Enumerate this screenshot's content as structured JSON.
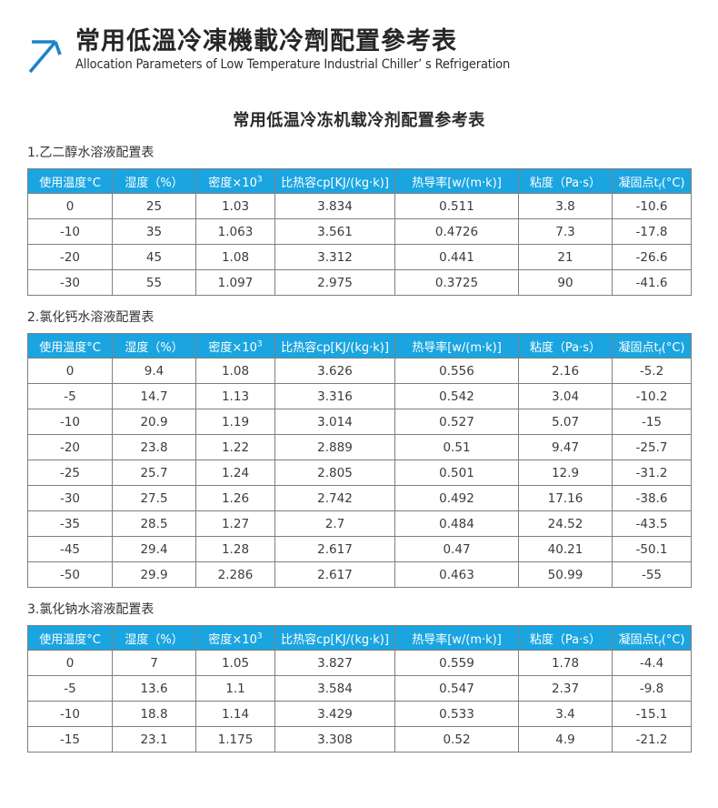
{
  "brand": {
    "arrow_icon": "arrow-up-right-icon",
    "arrow_color": "#1b82ca",
    "title_zh": "常用低溫冷凍機載冷劑配置參考表",
    "subtitle_en": "Allocation Parameters of Low Temperature Industrial Chiller’ s Refrigeration"
  },
  "page": {
    "mid_title": "常用低温冷冻机载冷剂配置参考表",
    "header_bg": "#1ba5e0",
    "header_text_color": "#ffffff",
    "border_color": "#7f7f7f"
  },
  "columns": [
    [
      {
        "t": "使用温度°C"
      }
    ],
    [
      {
        "t": "湿度（%）"
      }
    ],
    [
      {
        "t": "密度×10"
      },
      {
        "t": "3",
        "style": "sup"
      }
    ],
    [
      {
        "t": "比热容cp[KJ/(kg·k)]"
      }
    ],
    [
      {
        "t": "热导率[w/(m·k)]"
      }
    ],
    [
      {
        "t": "粘度（Pa·s）"
      }
    ],
    [
      {
        "t": "凝固点t"
      },
      {
        "t": "f",
        "style": "sub"
      },
      {
        "t": "(°C)"
      }
    ]
  ],
  "tables": [
    {
      "label": "1.乙二醇水溶液配置表",
      "rows": [
        [
          "0",
          "25",
          "1.03",
          "3.834",
          "0.511",
          "3.8",
          "-10.6"
        ],
        [
          "-10",
          "35",
          "1.063",
          "3.561",
          "0.4726",
          "7.3",
          "-17.8"
        ],
        [
          "-20",
          "45",
          "1.08",
          "3.312",
          "0.441",
          "21",
          "-26.6"
        ],
        [
          "-30",
          "55",
          "1.097",
          "2.975",
          "0.3725",
          "90",
          "-41.6"
        ]
      ]
    },
    {
      "label": "2.氯化钙水溶液配置表",
      "rows": [
        [
          "0",
          "9.4",
          "1.08",
          "3.626",
          "0.556",
          "2.16",
          "-5.2"
        ],
        [
          "-5",
          "14.7",
          "1.13",
          "3.316",
          "0.542",
          "3.04",
          "-10.2"
        ],
        [
          "-10",
          "20.9",
          "1.19",
          "3.014",
          "0.527",
          "5.07",
          "-15"
        ],
        [
          "-20",
          "23.8",
          "1.22",
          "2.889",
          "0.51",
          "9.47",
          "-25.7"
        ],
        [
          "-25",
          "25.7",
          "1.24",
          "2.805",
          "0.501",
          "12.9",
          "-31.2"
        ],
        [
          "-30",
          "27.5",
          "1.26",
          "2.742",
          "0.492",
          "17.16",
          "-38.6"
        ],
        [
          "-35",
          "28.5",
          "1.27",
          "2.7",
          "0.484",
          "24.52",
          "-43.5"
        ],
        [
          "-45",
          "29.4",
          "1.28",
          "2.617",
          "0.47",
          "40.21",
          "-50.1"
        ],
        [
          "-50",
          "29.9",
          "2.286",
          "2.617",
          "0.463",
          "50.99",
          "-55"
        ]
      ]
    },
    {
      "label": "3.氯化钠水溶液配置表",
      "rows": [
        [
          "0",
          "7",
          "1.05",
          "3.827",
          "0.559",
          "1.78",
          "-4.4"
        ],
        [
          "-5",
          "13.6",
          "1.1",
          "3.584",
          "0.547",
          "2.37",
          "-9.8"
        ],
        [
          "-10",
          "18.8",
          "1.14",
          "3.429",
          "0.533",
          "3.4",
          "-15.1"
        ],
        [
          "-15",
          "23.1",
          "1.175",
          "3.308",
          "0.52",
          "4.9",
          "-21.2"
        ]
      ]
    }
  ]
}
